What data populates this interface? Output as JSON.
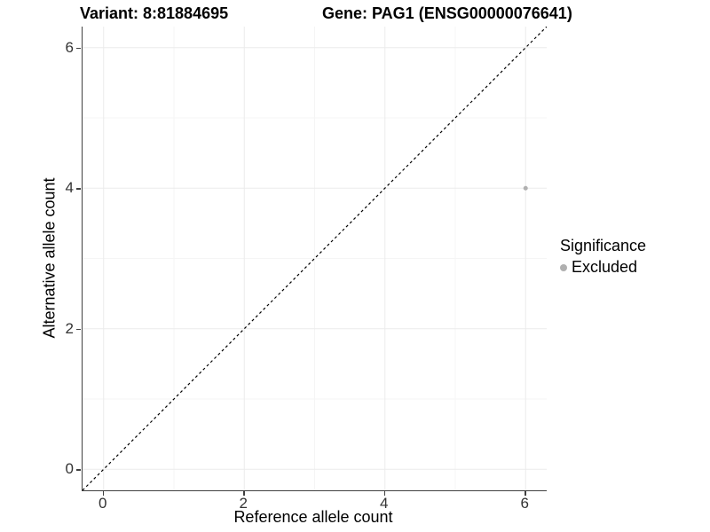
{
  "titles": {
    "variant": "Variant: 8:81884695",
    "gene": "Gene: PAG1 (ENSG00000076641)"
  },
  "axes": {
    "x": {
      "label": "Reference allele count"
    },
    "y": {
      "label": "Alternative allele count"
    }
  },
  "legend": {
    "title": "Significance",
    "items": [
      {
        "label": "Excluded",
        "color": "#b0b0b0"
      }
    ]
  },
  "chart_data": {
    "type": "scatter",
    "title_left": "Variant: 8:81884695",
    "title_right": "Gene: PAG1 (ENSG00000076641)",
    "xlabel": "Reference allele count",
    "ylabel": "Alternative allele count",
    "xlim": [
      -0.3,
      6.3
    ],
    "ylim": [
      -0.3,
      6.3
    ],
    "x_ticks": [
      0,
      2,
      4,
      6
    ],
    "y_ticks": [
      0,
      2,
      4,
      6
    ],
    "grid": {
      "major": [
        0,
        2,
        4,
        6
      ],
      "minor": [
        1,
        3,
        5
      ]
    },
    "series": [
      {
        "name": "Excluded",
        "color": "#b0b0b0",
        "point_radius": 2.5,
        "points": [
          {
            "x": 6,
            "y": 4
          }
        ]
      }
    ],
    "reference_line": {
      "type": "identity",
      "slope": 1,
      "intercept": 0,
      "style": "dashed",
      "color": "#000000"
    },
    "legend_position": "right",
    "colors": {
      "grid_major": "#ebebeb",
      "grid_minor": "#f5f5f5",
      "axis_line": "#404040",
      "tick_text": "#333333",
      "text": "#000000",
      "background": "#ffffff"
    }
  }
}
